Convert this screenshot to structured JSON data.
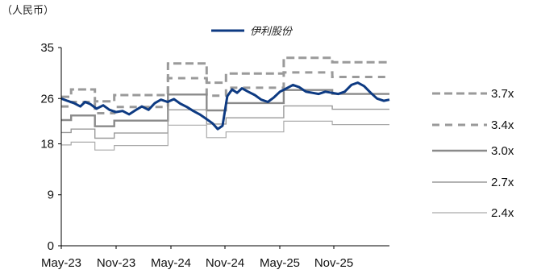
{
  "chart_data": {
    "type": "line",
    "unit_label": "（人民币）",
    "ylim": [
      0,
      35
    ],
    "y_ticks": [
      "0",
      "9",
      "18",
      "26",
      "35"
    ],
    "x_ticks": [
      "May-23",
      "Nov-23",
      "May-24",
      "Nov-24",
      "May-25",
      "Nov-25"
    ],
    "x_range": [
      "2023-05-01",
      "2026-02-28"
    ],
    "grid": false,
    "legend_placement": "right",
    "price_series": {
      "name": "伊利股份",
      "color": "#0d3a82",
      "points": [
        [
          "2023-05-01",
          26.0
        ],
        [
          "2023-05-20",
          25.6
        ],
        [
          "2023-06-10",
          25.2
        ],
        [
          "2023-06-30",
          24.6
        ],
        [
          "2023-07-15",
          25.4
        ],
        [
          "2023-08-01",
          25.0
        ],
        [
          "2023-08-20",
          24.2
        ],
        [
          "2023-09-10",
          24.8
        ],
        [
          "2023-09-30",
          24.0
        ],
        [
          "2023-10-20",
          23.6
        ],
        [
          "2023-11-10",
          23.8
        ],
        [
          "2023-12-01",
          23.2
        ],
        [
          "2023-12-20",
          23.9
        ],
        [
          "2024-01-10",
          24.6
        ],
        [
          "2024-01-31",
          24.0
        ],
        [
          "2024-02-20",
          25.2
        ],
        [
          "2024-03-10",
          25.8
        ],
        [
          "2024-03-31",
          25.4
        ],
        [
          "2024-04-20",
          25.9
        ],
        [
          "2024-05-10",
          25.1
        ],
        [
          "2024-05-31",
          24.5
        ],
        [
          "2024-06-20",
          23.8
        ],
        [
          "2024-07-10",
          23.2
        ],
        [
          "2024-07-31",
          22.4
        ],
        [
          "2024-08-20",
          21.6
        ],
        [
          "2024-09-05",
          20.6
        ],
        [
          "2024-09-20",
          21.2
        ],
        [
          "2024-10-05",
          26.4
        ],
        [
          "2024-10-20",
          27.6
        ],
        [
          "2024-11-05",
          27.0
        ],
        [
          "2024-11-20",
          27.8
        ],
        [
          "2024-12-10",
          27.2
        ],
        [
          "2024-12-31",
          26.6
        ],
        [
          "2025-01-20",
          25.8
        ],
        [
          "2025-02-10",
          25.4
        ],
        [
          "2025-03-01",
          26.2
        ],
        [
          "2025-03-20",
          27.2
        ],
        [
          "2025-04-10",
          27.8
        ],
        [
          "2025-04-30",
          28.4
        ],
        [
          "2025-05-20",
          28.0
        ],
        [
          "2025-06-10",
          27.2
        ],
        [
          "2025-06-30",
          27.0
        ],
        [
          "2025-07-20",
          26.8
        ],
        [
          "2025-08-10",
          27.2
        ],
        [
          "2025-08-31",
          27.0
        ],
        [
          "2025-09-20",
          26.8
        ],
        [
          "2025-10-10",
          27.2
        ],
        [
          "2025-10-31",
          28.4
        ],
        [
          "2025-11-20",
          28.8
        ],
        [
          "2025-12-10",
          28.2
        ],
        [
          "2025-12-31",
          27.0
        ],
        [
          "2026-01-20",
          26.0
        ],
        [
          "2026-02-10",
          25.6
        ],
        [
          "2026-02-28",
          25.8
        ]
      ]
    },
    "band_series": [
      {
        "name": "3.7x",
        "color": "#9a9a9a",
        "dash": "long",
        "steps": [
          [
            "2023-05-01",
            26.3
          ],
          [
            "2023-06-01",
            27.6
          ],
          [
            "2023-08-15",
            25.5
          ],
          [
            "2023-10-15",
            26.6
          ],
          [
            "2024-04-01",
            32.2
          ],
          [
            "2024-08-01",
            28.8
          ],
          [
            "2024-10-01",
            30.4
          ],
          [
            "2025-04-01",
            33.2
          ],
          [
            "2025-09-01",
            32.4
          ],
          [
            "2026-02-28",
            32.4
          ]
        ]
      },
      {
        "name": "3.4x",
        "color": "#9a9a9a",
        "dash": "short",
        "steps": [
          [
            "2023-05-01",
            24.6
          ],
          [
            "2023-06-01",
            25.4
          ],
          [
            "2023-08-15",
            23.4
          ],
          [
            "2023-10-15",
            24.5
          ],
          [
            "2024-04-01",
            29.6
          ],
          [
            "2024-08-01",
            26.5
          ],
          [
            "2024-10-01",
            27.9
          ],
          [
            "2025-04-01",
            30.6
          ],
          [
            "2025-09-01",
            29.8
          ],
          [
            "2026-02-28",
            29.8
          ]
        ]
      },
      {
        "name": "3.0x",
        "color": "#8a8a8a",
        "dash": "none",
        "steps": [
          [
            "2023-05-01",
            22.2
          ],
          [
            "2023-06-01",
            23.0
          ],
          [
            "2023-08-15",
            21.1
          ],
          [
            "2023-10-15",
            22.1
          ],
          [
            "2024-04-01",
            26.7
          ],
          [
            "2024-08-01",
            23.9
          ],
          [
            "2024-10-01",
            25.2
          ],
          [
            "2025-04-01",
            27.5
          ],
          [
            "2025-09-01",
            26.8
          ],
          [
            "2026-02-28",
            26.8
          ]
        ]
      },
      {
        "name": "2.7x",
        "color": "#9a9a9a",
        "dash": "none",
        "steps": [
          [
            "2023-05-01",
            20.0
          ],
          [
            "2023-06-01",
            20.6
          ],
          [
            "2023-08-15",
            19.0
          ],
          [
            "2023-10-15",
            19.9
          ],
          [
            "2024-04-01",
            24.0
          ],
          [
            "2024-08-01",
            21.5
          ],
          [
            "2024-10-01",
            22.6
          ],
          [
            "2025-04-01",
            24.7
          ],
          [
            "2025-09-01",
            24.1
          ],
          [
            "2026-02-28",
            24.1
          ]
        ]
      },
      {
        "name": "2.4x",
        "color": "#aaaaaa",
        "dash": "none",
        "steps": [
          [
            "2023-05-01",
            17.8
          ],
          [
            "2023-06-01",
            18.3
          ],
          [
            "2023-08-15",
            16.9
          ],
          [
            "2023-10-15",
            17.7
          ],
          [
            "2024-04-01",
            21.3
          ],
          [
            "2024-08-01",
            19.1
          ],
          [
            "2024-10-01",
            20.1
          ],
          [
            "2025-04-01",
            22.0
          ],
          [
            "2025-09-01",
            21.4
          ],
          [
            "2026-02-28",
            21.4
          ]
        ]
      }
    ]
  }
}
